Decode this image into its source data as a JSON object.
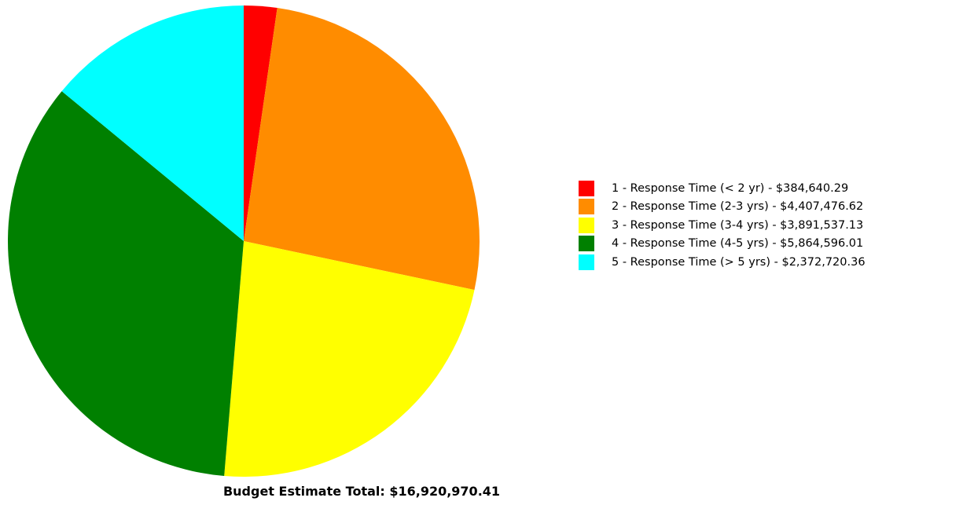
{
  "chart_data": {
    "type": "pie",
    "title": "",
    "start_angle": "12 o'clock",
    "direction": "clockwise",
    "legend_position": "right",
    "slices": [
      {
        "label": "1 - Response Time (< 2 yr)  - $384,640.29",
        "value": 384640.29,
        "color": "#FF0000"
      },
      {
        "label": "2 - Response Time (2-3 yrs)  - $4,407,476.62",
        "value": 4407476.62,
        "color": "#FF8C00"
      },
      {
        "label": "3 - Response Time (3-4 yrs)  - $3,891,537.13",
        "value": 3891537.13,
        "color": "#FFFF00"
      },
      {
        "label": "4 - Response Time (4-5 yrs)  - $5,864,596.01",
        "value": 5864596.01,
        "color": "#008000"
      },
      {
        "label": "5 - Response Time (> 5 yrs)  - $2,372,720.36",
        "value": 2372720.36,
        "color": "#00FFFF"
      }
    ],
    "footer": "Budget Estimate Total: $16,920,970.41"
  }
}
